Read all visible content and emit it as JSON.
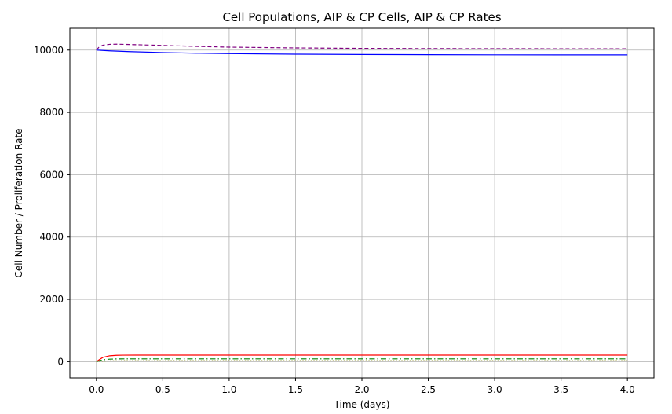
{
  "chart_data": {
    "type": "line",
    "title": "Cell Populations, AIP & CP Cells, AIP & CP Rates",
    "xlabel": "Time (days)",
    "ylabel": "Cell Number / Proliferation Rate",
    "xlim": [
      -0.2,
      4.2
    ],
    "ylim": [
      -520,
      10700
    ],
    "grid": true,
    "xticks": [
      0.0,
      0.5,
      1.0,
      1.5,
      2.0,
      2.5,
      3.0,
      3.5,
      4.0
    ],
    "xtick_labels": [
      "0.0",
      "0.5",
      "1.0",
      "1.5",
      "2.0",
      "2.5",
      "3.0",
      "3.5",
      "4.0"
    ],
    "yticks": [
      0,
      2000,
      4000,
      6000,
      8000,
      10000
    ],
    "ytick_labels": [
      "0",
      "2000",
      "4000",
      "6000",
      "8000",
      "10000"
    ],
    "series": [
      {
        "color": "#0000ff",
        "style": "solid",
        "x": [
          0,
          0.1,
          0.25,
          0.5,
          0.75,
          1.0,
          1.5,
          2.0,
          2.5,
          3.0,
          3.5,
          4.0
        ],
        "y": [
          10000,
          9975,
          9950,
          9920,
          9900,
          9885,
          9868,
          9858,
          9852,
          9848,
          9846,
          9845
        ]
      },
      {
        "color": "#800080",
        "style": "dashed",
        "x": [
          0,
          0.02,
          0.05,
          0.1,
          0.15,
          0.25,
          0.5,
          0.75,
          1.0,
          1.5,
          2.0,
          2.5,
          3.0,
          3.5,
          4.0
        ],
        "y": [
          10000,
          10100,
          10160,
          10185,
          10190,
          10180,
          10150,
          10120,
          10095,
          10070,
          10055,
          10048,
          10045,
          10043,
          10042
        ]
      },
      {
        "color": "#ff0000",
        "style": "solid",
        "x": [
          0,
          0.02,
          0.05,
          0.1,
          0.15,
          0.2,
          0.3,
          0.5,
          1.0,
          2.0,
          3.0,
          4.0
        ],
        "y": [
          0,
          60,
          140,
          190,
          205,
          210,
          212,
          212,
          212,
          212,
          212,
          212
        ]
      },
      {
        "color": "#008000",
        "style": "dashdot",
        "x": [
          0,
          0.02,
          0.05,
          0.1,
          0.15,
          0.2,
          0.3,
          0.5,
          1.0,
          2.0,
          3.0,
          4.0
        ],
        "y": [
          0,
          25,
          60,
          80,
          88,
          90,
          90,
          90,
          90,
          90,
          90,
          90
        ]
      },
      {
        "color": "#808000",
        "style": "dotted",
        "x": [
          0,
          0.02,
          0.05,
          0.1,
          0.2,
          0.5,
          1.0,
          2.0,
          3.0,
          4.0
        ],
        "y": [
          0,
          8,
          18,
          25,
          28,
          28,
          28,
          28,
          28,
          28
        ]
      }
    ]
  }
}
